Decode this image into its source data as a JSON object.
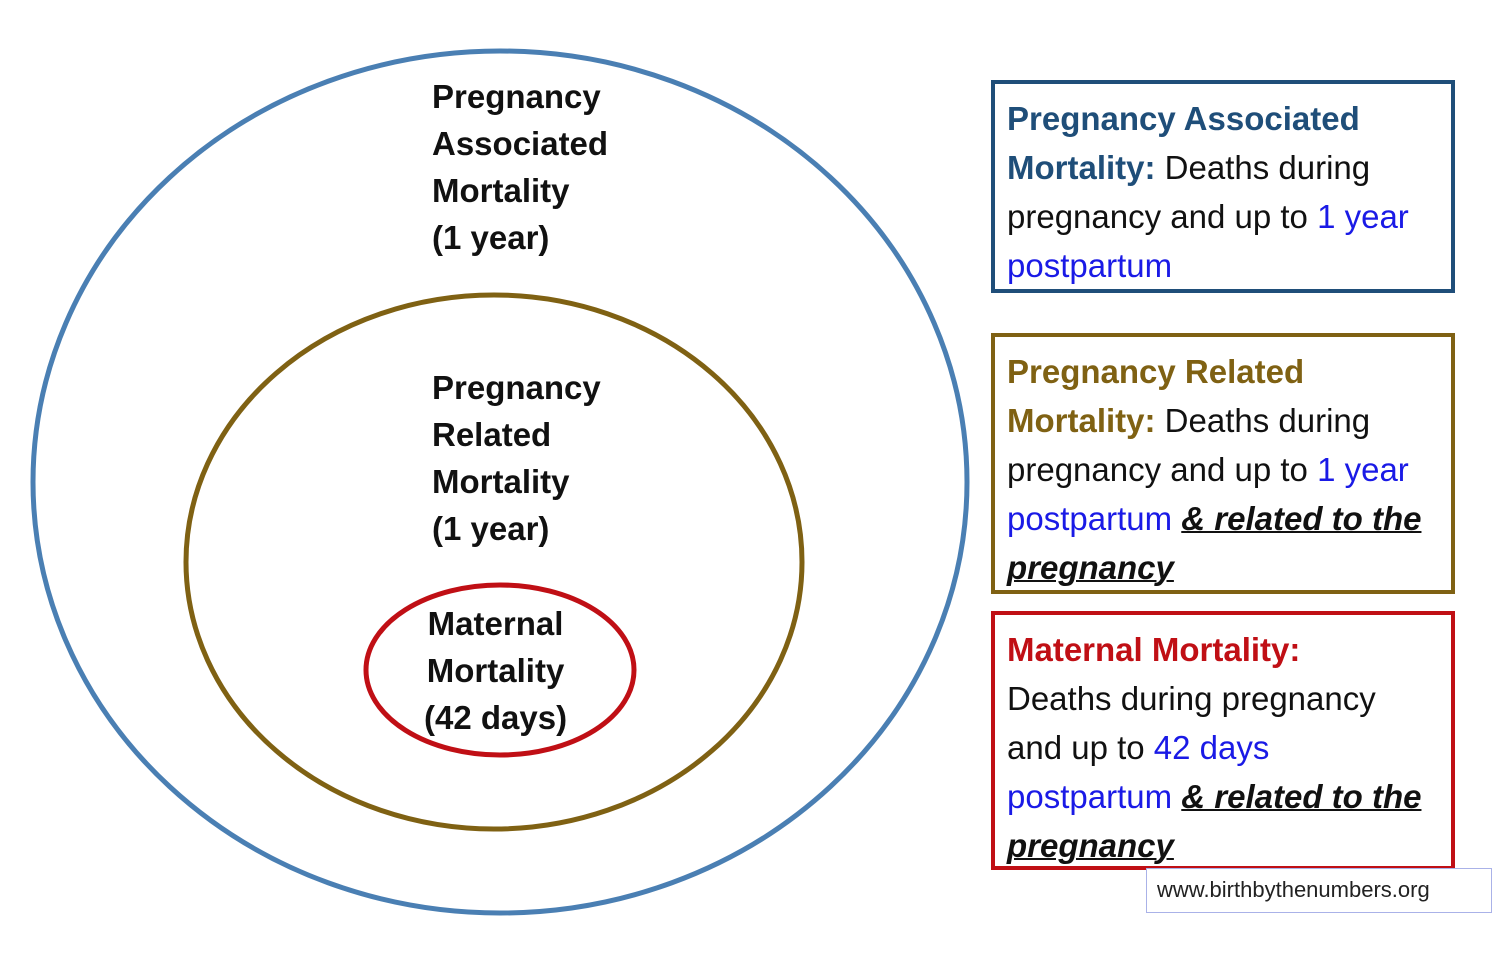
{
  "colors": {
    "outer_circle": "#4a7fb3",
    "middle_circle": "#7f6113",
    "inner_circle": "#c00f15",
    "blue_text": "#1a1ae6",
    "associated_title": "#1f4e79",
    "related_title": "#7f6113",
    "maternal_title": "#c00f15"
  },
  "circles": {
    "outer": {
      "lines": [
        "Pregnancy",
        "Associated",
        "Mortality",
        "(1 year)"
      ]
    },
    "middle": {
      "lines": [
        "Pregnancy",
        "Related",
        "Mortality",
        "(1 year)"
      ]
    },
    "inner": {
      "lines": [
        "Maternal",
        "Mortality",
        "(42 days)"
      ]
    }
  },
  "definitions": {
    "associated": {
      "term_part1": "Pregnancy Associated",
      "term_part2": "Mortality:",
      "desc": " Deaths during pregnancy and up to ",
      "highlight": "1 year postpartum"
    },
    "related": {
      "term_part1": "Pregnancy Related",
      "term_part2": "Mortality:",
      "desc": " Deaths during pregnancy and up to ",
      "highlight": "1 year postpartum",
      "emphasis": "& related to the pregnancy"
    },
    "maternal": {
      "term": "Maternal Mortality:",
      "desc_part1": "Deaths during pregnancy and up to ",
      "highlight": "42 days postpartum",
      "emphasis": "& related to the pregnancy"
    }
  },
  "source": "www.birthbythenumbers.org"
}
